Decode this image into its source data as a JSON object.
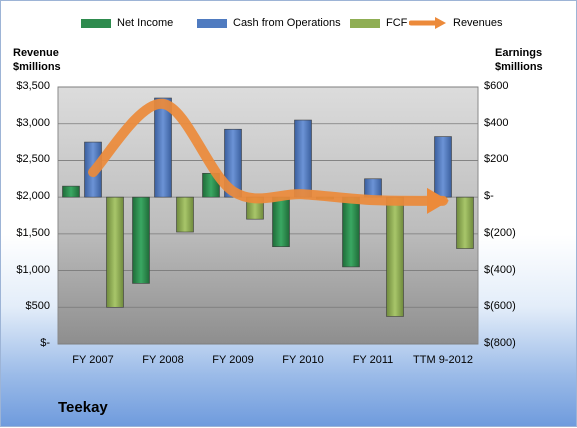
{
  "chart_data": {
    "type": "bar",
    "company": "Teekay",
    "categories": [
      "FY 2007",
      "FY 2008",
      "FY 2009",
      "FY 2010",
      "FY 2011",
      "TTM 9-2012"
    ],
    "left_axis": {
      "title_line1": "Revenue",
      "title_line2": "$millions",
      "ticks": [
        "$3,500",
        "$3,000",
        "$2,500",
        "$2,000",
        "$1,500",
        "$1,000",
        "$500",
        "$-"
      ],
      "range": [
        0,
        3500
      ]
    },
    "right_axis": {
      "title_line1": "Earnings",
      "title_line2": "$millions",
      "ticks": [
        "$600",
        "$400",
        "$200",
        "$-",
        "$(200)",
        "$(400)",
        "$(600)",
        "$(800)"
      ],
      "range": [
        -800,
        600
      ]
    },
    "series": [
      {
        "name": "Net Income",
        "axis": "right",
        "color": "#2e8b4e",
        "values": [
          60,
          -470,
          130,
          -270,
          -380,
          0
        ]
      },
      {
        "name": "Cash from Operations",
        "axis": "right",
        "color": "#4f7bc0",
        "values": [
          300,
          540,
          370,
          420,
          100,
          330
        ]
      },
      {
        "name": "FCF",
        "axis": "right",
        "color": "#8fae54",
        "values": [
          -600,
          -190,
          -120,
          -10,
          -650,
          -280
        ]
      },
      {
        "name": "Revenues",
        "axis": "left",
        "color": "#ec8a3a",
        "values": [
          2340,
          3270,
          2080,
          2040,
          1960,
          1950
        ]
      }
    ],
    "grid": true,
    "legend_position": "top"
  }
}
